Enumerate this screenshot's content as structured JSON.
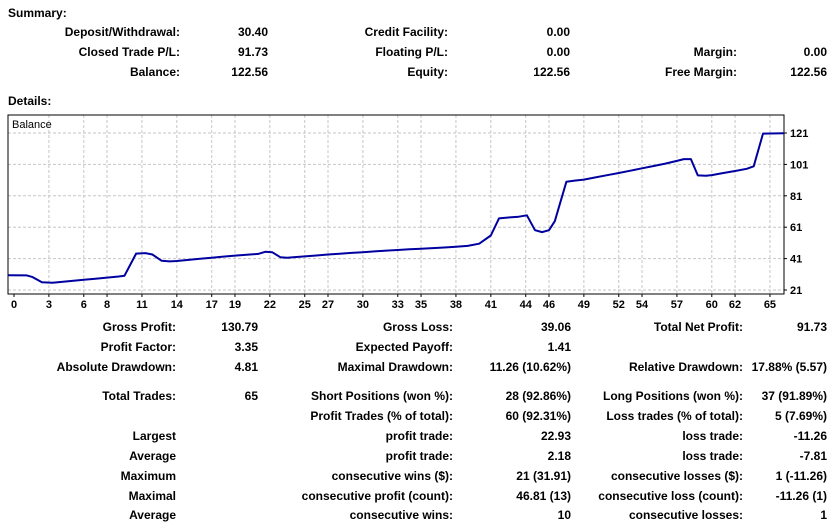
{
  "summary": {
    "heading": "Summary:",
    "rows": [
      [
        "Deposit/Withdrawal:",
        "30.40",
        "Credit Facility:",
        "0.00",
        "",
        ""
      ],
      [
        "Closed Trade P/L:",
        "91.73",
        "Floating P/L:",
        "0.00",
        "Margin:",
        "0.00"
      ],
      [
        "Balance:",
        "122.56",
        "Equity:",
        "122.56",
        "Free Margin:",
        "122.56"
      ]
    ]
  },
  "details": {
    "heading": "Details:",
    "rows": [
      [
        "Gross Profit:",
        "130.79",
        "Gross Loss:",
        "39.06",
        "Total Net Profit:",
        "91.73"
      ],
      [
        "Profit Factor:",
        "3.35",
        "Expected Payoff:",
        "1.41",
        "",
        ""
      ],
      [
        "Absolute Drawdown:",
        "4.81",
        "Maximal Drawdown:",
        "11.26 (10.62%)",
        "Relative Drawdown:",
        "17.88% (5.57)"
      ],
      [
        "Total Trades:",
        "65",
        "Short Positions (won %):",
        "28 (92.86%)",
        "Long Positions (won %):",
        "37 (91.89%)"
      ],
      [
        "",
        "",
        "Profit Trades (% of total):",
        "60 (92.31%)",
        "Loss trades (% of total):",
        "5 (7.69%)"
      ],
      [
        "Largest",
        "",
        "profit trade:",
        "22.93",
        "loss trade:",
        "-11.26"
      ],
      [
        "Average",
        "",
        "profit trade:",
        "2.18",
        "loss trade:",
        "-7.81"
      ],
      [
        "Maximum",
        "",
        "consecutive wins ($):",
        "21 (31.91)",
        "consecutive losses ($):",
        "1 (-11.26)"
      ],
      [
        "Maximal",
        "",
        "consecutive profit (count):",
        "46.81 (13)",
        "consecutive loss (count):",
        "-11.26 (1)"
      ],
      [
        "Average",
        "",
        "consecutive wins:",
        "10",
        "consecutive losses:",
        "1"
      ]
    ]
  },
  "chart_data": {
    "type": "line",
    "title": "Balance",
    "xlabel": "",
    "ylabel": "",
    "x_ticks": [
      0,
      3,
      6,
      8,
      11,
      14,
      17,
      19,
      22,
      25,
      27,
      30,
      33,
      35,
      38,
      41,
      44,
      46,
      49,
      52,
      54,
      57,
      60,
      62,
      65
    ],
    "y_ticks": [
      21,
      41,
      61,
      81,
      101,
      121
    ],
    "xlim": [
      -0.5,
      66.2
    ],
    "ylim": [
      19,
      134
    ],
    "grid": true,
    "legend_position": "top-left-inside",
    "line_color": "#0000A0",
    "grid_color": "#C6C6C6",
    "border_color": "#000000",
    "series": [
      {
        "name": "Balance",
        "points": [
          [
            -0.5,
            30.4
          ],
          [
            1.1,
            30.3
          ],
          [
            1.6,
            29.2
          ],
          [
            2.4,
            25.9
          ],
          [
            3.3,
            25.6
          ],
          [
            4,
            26.1
          ],
          [
            5,
            26.8
          ],
          [
            6,
            27.5
          ],
          [
            7,
            28.2
          ],
          [
            8,
            28.9
          ],
          [
            9,
            29.6
          ],
          [
            9.5,
            30.1
          ],
          [
            10.5,
            44.2
          ],
          [
            11.3,
            44.5
          ],
          [
            11.9,
            43.6
          ],
          [
            12.7,
            39.6
          ],
          [
            13.4,
            39.2
          ],
          [
            14,
            39.5
          ],
          [
            15,
            40.2
          ],
          [
            16,
            40.9
          ],
          [
            17,
            41.6
          ],
          [
            18,
            42.3
          ],
          [
            19,
            42.9
          ],
          [
            20,
            43.4
          ],
          [
            21,
            44.0
          ],
          [
            21.6,
            45.3
          ],
          [
            22.2,
            45.1
          ],
          [
            22.9,
            41.9
          ],
          [
            23.5,
            41.6
          ],
          [
            24,
            41.8
          ],
          [
            25,
            42.4
          ],
          [
            26,
            43.0
          ],
          [
            27,
            43.6
          ],
          [
            28,
            44.1
          ],
          [
            29,
            44.6
          ],
          [
            30,
            45.1
          ],
          [
            31,
            45.6
          ],
          [
            32,
            46.1
          ],
          [
            33,
            46.5
          ],
          [
            34,
            46.9
          ],
          [
            35,
            47.3
          ],
          [
            36,
            47.7
          ],
          [
            37,
            48.1
          ],
          [
            38,
            48.5
          ],
          [
            39,
            49.1
          ],
          [
            40,
            50.5
          ],
          [
            41,
            55.7
          ],
          [
            41.7,
            66.6
          ],
          [
            42.4,
            67.1
          ],
          [
            43.4,
            67.7
          ],
          [
            44.1,
            68.6
          ],
          [
            44.8,
            59.1
          ],
          [
            45.4,
            57.9
          ],
          [
            46.0,
            59.1
          ],
          [
            46.5,
            64.8
          ],
          [
            47.5,
            90.0
          ],
          [
            48.2,
            90.7
          ],
          [
            49,
            91.3
          ],
          [
            50,
            92.7
          ],
          [
            51,
            94.1
          ],
          [
            52,
            95.5
          ],
          [
            53,
            97.0
          ],
          [
            54,
            98.5
          ],
          [
            55,
            100.0
          ],
          [
            56,
            101.5
          ],
          [
            57,
            103.2
          ],
          [
            57.6,
            104.4
          ],
          [
            58.2,
            104.4
          ],
          [
            58.8,
            94.0
          ],
          [
            59.5,
            93.8
          ],
          [
            60,
            94.2
          ],
          [
            61,
            95.5
          ],
          [
            62,
            96.8
          ],
          [
            63,
            98.2
          ],
          [
            63.6,
            99.8
          ],
          [
            64.4,
            120.6
          ],
          [
            66.2,
            120.8
          ]
        ]
      }
    ]
  }
}
